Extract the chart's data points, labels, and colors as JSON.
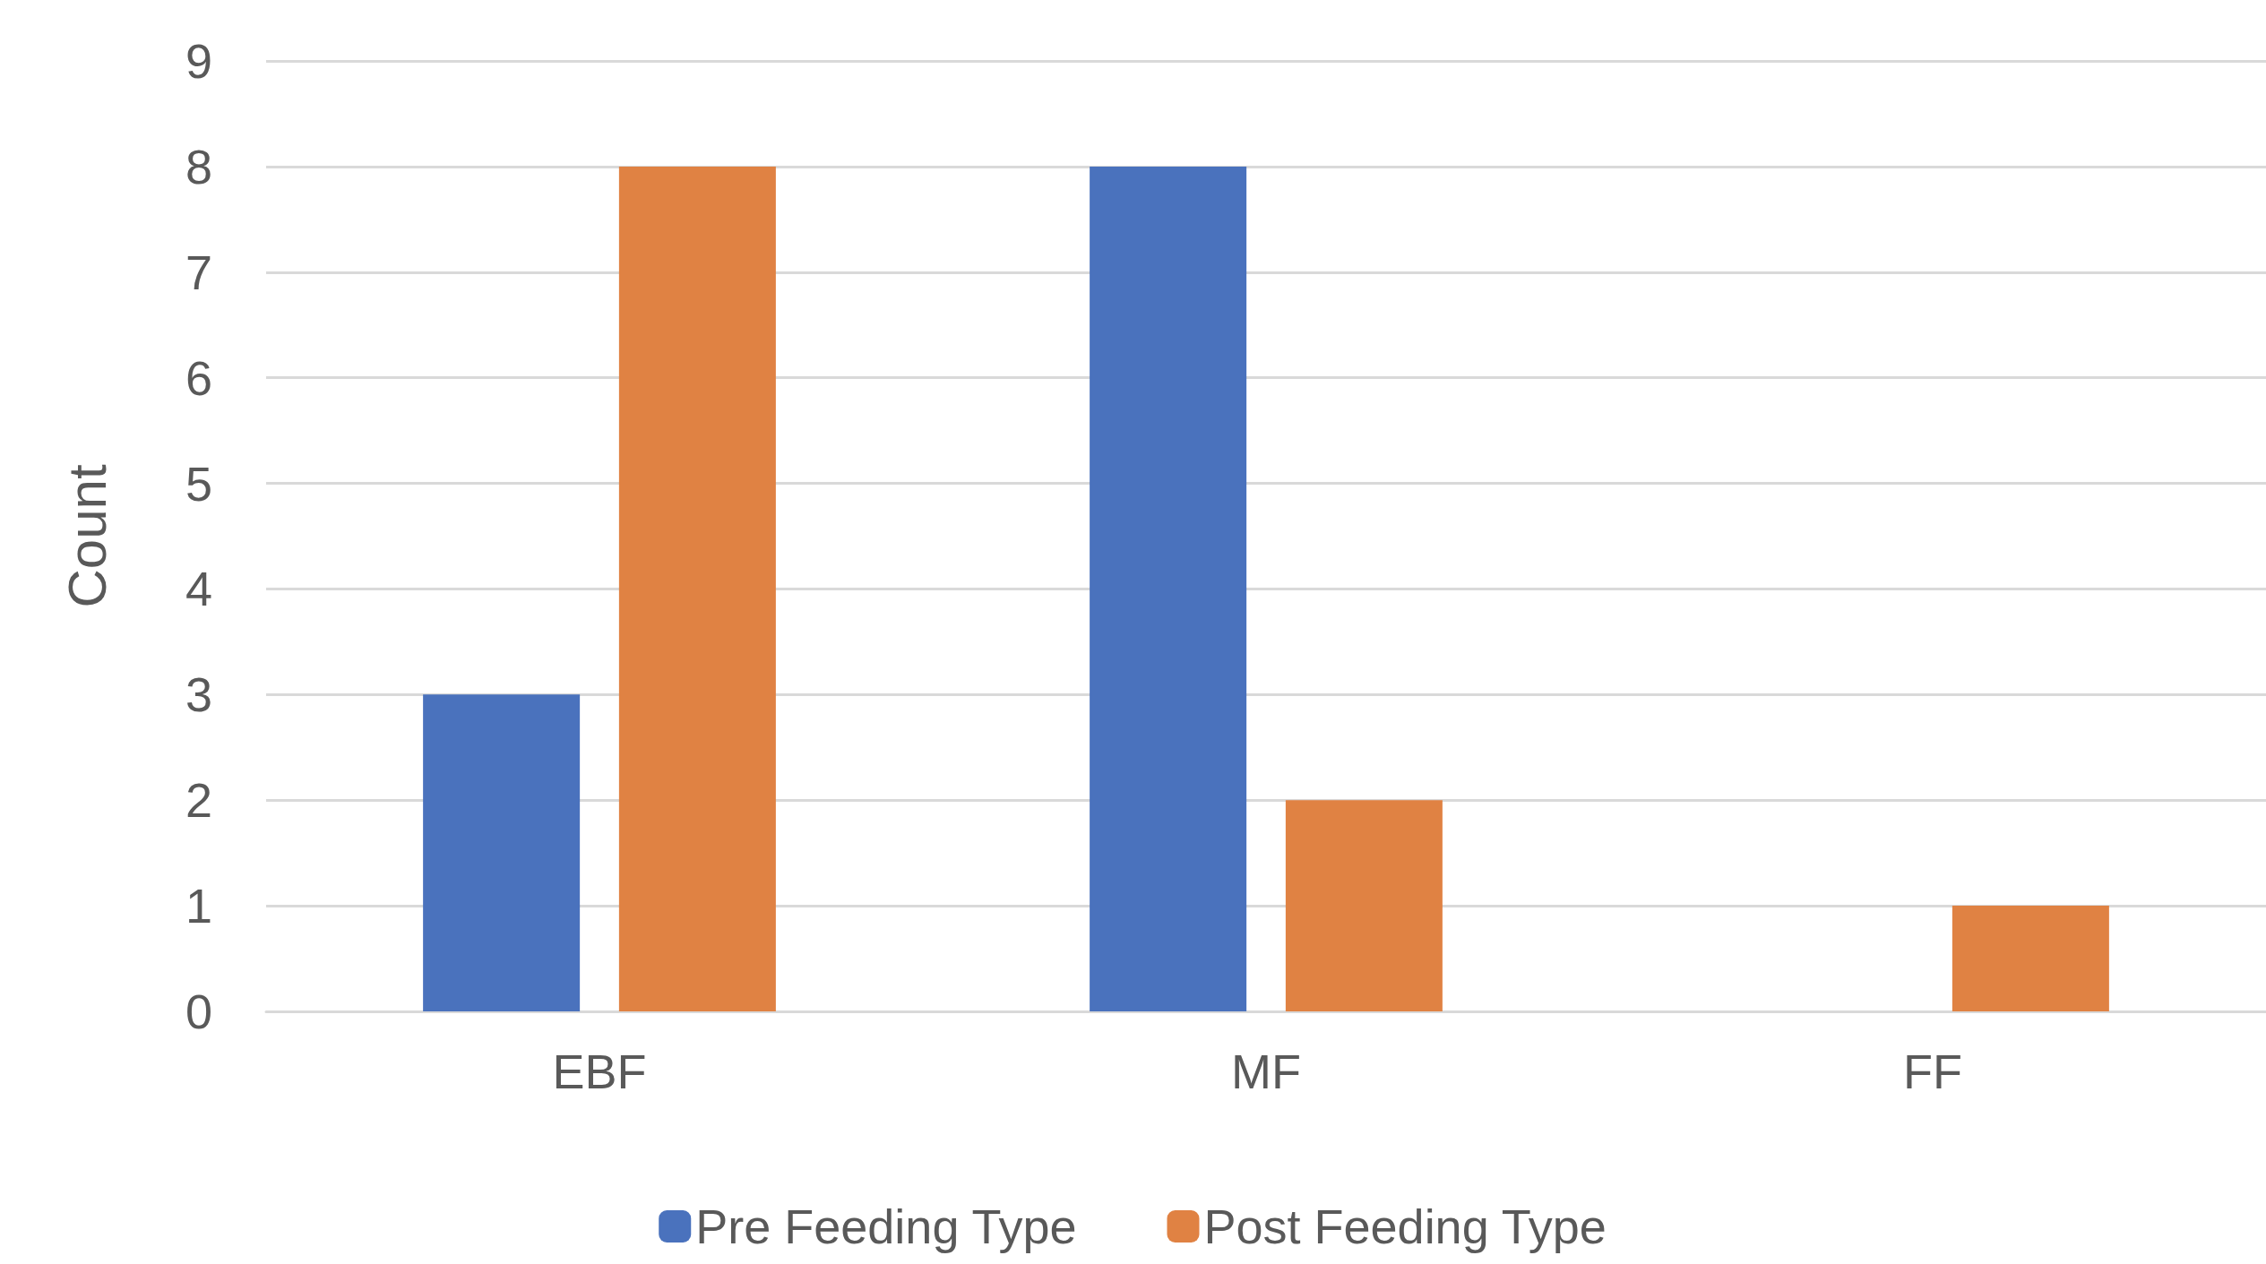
{
  "chart_data": {
    "type": "bar",
    "ylabel": "Count",
    "categories": [
      "EBF",
      "MF",
      "FF"
    ],
    "series": [
      {
        "name": "Pre Feeding Type",
        "color": "#4a72bd",
        "values": [
          3,
          8,
          0
        ]
      },
      {
        "name": "Post Feeding Type",
        "color": "#e08243",
        "values": [
          8,
          2,
          1
        ]
      }
    ],
    "ylim": [
      0,
      9
    ],
    "yticks": [
      0,
      1,
      2,
      3,
      4,
      5,
      6,
      7,
      8,
      9
    ],
    "grid": "y",
    "legend": "bottom"
  }
}
